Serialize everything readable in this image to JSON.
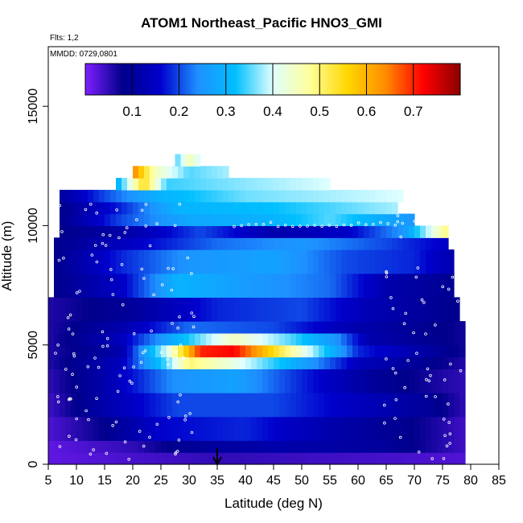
{
  "title": "ATOM1 Northeast_Pacific HNO3_GMI",
  "flights_label": "Flts: 1,2",
  "mmdd_label": "MMDD: 0729,0801",
  "chart_data": {
    "type": "heatmap",
    "title": "ATOM1 Northeast_Pacific HNO3_GMI",
    "xlabel": "Latitude (deg N)",
    "ylabel": "Altitude (m)",
    "xlim": [
      5,
      85
    ],
    "ylim": [
      0,
      17500
    ],
    "xticks": [
      5,
      10,
      15,
      20,
      25,
      30,
      35,
      40,
      45,
      50,
      55,
      60,
      65,
      70,
      75,
      80,
      85
    ],
    "yticks": [
      0,
      5000,
      10000,
      15000
    ],
    "colorbar": {
      "ticks": [
        0.1,
        0.2,
        0.3,
        0.4,
        0.5,
        0.6,
        0.7
      ],
      "range": [
        0.0,
        0.8
      ],
      "stops": [
        "#7f1fff",
        "#00008b",
        "#0000cd",
        "#1e90ff",
        "#00bfff",
        "#e0ffff",
        "#ffff99",
        "#ffd700",
        "#ff8c00",
        "#ff0000",
        "#8b0000"
      ]
    },
    "marker": {
      "x": 35,
      "symbol": "down-arrow"
    },
    "bands": [
      {
        "y0": 0,
        "y1": 500,
        "x0": 5,
        "x1": 79,
        "knots": [
          [
            5,
            0.02
          ],
          [
            35,
            0.05
          ],
          [
            79,
            0.03
          ]
        ]
      },
      {
        "y0": 500,
        "y1": 1000,
        "x0": 5,
        "x1": 79,
        "knots": [
          [
            5,
            0.02
          ],
          [
            20,
            0.05
          ],
          [
            28,
            0.09
          ],
          [
            45,
            0.12
          ],
          [
            65,
            0.1
          ],
          [
            79,
            0.04
          ]
        ]
      },
      {
        "y0": 1000,
        "y1": 2000,
        "x0": 5,
        "x1": 79,
        "knots": [
          [
            5,
            0.03
          ],
          [
            15,
            0.08
          ],
          [
            25,
            0.16
          ],
          [
            40,
            0.18
          ],
          [
            55,
            0.12
          ],
          [
            70,
            0.08
          ],
          [
            79,
            0.04
          ]
        ]
      },
      {
        "y0": 2000,
        "y1": 3000,
        "x0": 5,
        "x1": 79,
        "knots": [
          [
            5,
            0.04
          ],
          [
            15,
            0.12
          ],
          [
            28,
            0.2
          ],
          [
            45,
            0.2
          ],
          [
            60,
            0.14
          ],
          [
            72,
            0.1
          ],
          [
            79,
            0.05
          ]
        ]
      },
      {
        "y0": 3000,
        "y1": 4000,
        "x0": 5,
        "x1": 79,
        "knots": [
          [
            5,
            0.05
          ],
          [
            15,
            0.12
          ],
          [
            27,
            0.24
          ],
          [
            38,
            0.27
          ],
          [
            50,
            0.18
          ],
          [
            62,
            0.1
          ],
          [
            79,
            0.05
          ]
        ]
      },
      {
        "y0": 4000,
        "y1": 4500,
        "x0": 5,
        "x1": 79,
        "knots": [
          [
            5,
            0.06
          ],
          [
            18,
            0.14
          ],
          [
            26,
            0.35
          ],
          [
            30,
            0.5
          ],
          [
            38,
            0.42
          ],
          [
            48,
            0.3
          ],
          [
            60,
            0.14
          ],
          [
            79,
            0.06
          ]
        ]
      },
      {
        "y0": 4500,
        "y1": 5000,
        "x0": 5,
        "x1": 79,
        "knots": [
          [
            5,
            0.06
          ],
          [
            18,
            0.12
          ],
          [
            26,
            0.4
          ],
          [
            32,
            0.7
          ],
          [
            38,
            0.72
          ],
          [
            45,
            0.55
          ],
          [
            52,
            0.38
          ],
          [
            60,
            0.18
          ],
          [
            79,
            0.07
          ]
        ]
      },
      {
        "y0": 5000,
        "y1": 5500,
        "x0": 5,
        "x1": 79,
        "knots": [
          [
            5,
            0.06
          ],
          [
            18,
            0.14
          ],
          [
            28,
            0.3
          ],
          [
            38,
            0.45
          ],
          [
            48,
            0.35
          ],
          [
            56,
            0.25
          ],
          [
            62,
            0.12
          ],
          [
            79,
            0.07
          ]
        ]
      },
      {
        "y0": 5500,
        "y1": 6000,
        "x0": 5,
        "x1": 79,
        "knots": [
          [
            5,
            0.06
          ],
          [
            18,
            0.12
          ],
          [
            30,
            0.22
          ],
          [
            45,
            0.2
          ],
          [
            60,
            0.12
          ],
          [
            79,
            0.07
          ]
        ]
      },
      {
        "y0": 6000,
        "y1": 7000,
        "x0": 5,
        "x1": 78,
        "knots": [
          [
            5,
            0.06
          ],
          [
            20,
            0.1
          ],
          [
            35,
            0.18
          ],
          [
            50,
            0.2
          ],
          [
            62,
            0.13
          ],
          [
            78,
            0.08
          ]
        ]
      },
      {
        "y0": 7000,
        "y1": 8000,
        "x0": 6,
        "x1": 77,
        "knots": [
          [
            6,
            0.08
          ],
          [
            18,
            0.15
          ],
          [
            28,
            0.3
          ],
          [
            40,
            0.26
          ],
          [
            55,
            0.22
          ],
          [
            65,
            0.12
          ],
          [
            77,
            0.09
          ]
        ]
      },
      {
        "y0": 8000,
        "y1": 9000,
        "x0": 6,
        "x1": 77,
        "knots": [
          [
            6,
            0.08
          ],
          [
            18,
            0.18
          ],
          [
            30,
            0.25
          ],
          [
            45,
            0.27
          ],
          [
            58,
            0.2
          ],
          [
            70,
            0.18
          ],
          [
            77,
            0.12
          ]
        ]
      },
      {
        "y0": 9000,
        "y1": 9500,
        "x0": 6,
        "x1": 76,
        "knots": [
          [
            6,
            0.08
          ],
          [
            20,
            0.15
          ],
          [
            35,
            0.22
          ],
          [
            50,
            0.25
          ],
          [
            65,
            0.2
          ],
          [
            76,
            0.15
          ]
        ]
      },
      {
        "y0": 9500,
        "y1": 10000,
        "x0": 7,
        "x1": 76,
        "knots": [
          [
            7,
            0.08
          ],
          [
            20,
            0.12
          ],
          [
            32,
            0.2
          ],
          [
            45,
            0.12
          ],
          [
            58,
            0.15
          ],
          [
            68,
            0.25
          ],
          [
            76,
            0.5
          ]
        ]
      },
      {
        "y0": 10000,
        "y1": 10500,
        "x0": 7,
        "x1": 70,
        "knots": [
          [
            7,
            0.08
          ],
          [
            18,
            0.2
          ],
          [
            30,
            0.28
          ],
          [
            45,
            0.3
          ],
          [
            55,
            0.35
          ],
          [
            65,
            0.28
          ],
          [
            70,
            0.25
          ]
        ]
      },
      {
        "y0": 10500,
        "y1": 11000,
        "x0": 7,
        "x1": 67,
        "knots": [
          [
            7,
            0.08
          ],
          [
            18,
            0.18
          ],
          [
            28,
            0.3
          ],
          [
            45,
            0.32
          ],
          [
            60,
            0.36
          ],
          [
            67,
            0.38
          ]
        ]
      },
      {
        "y0": 11000,
        "y1": 11500,
        "x0": 7,
        "x1": 68,
        "knots": [
          [
            7,
            0.1
          ],
          [
            15,
            0.2
          ],
          [
            25,
            0.3
          ],
          [
            40,
            0.36
          ],
          [
            55,
            0.38
          ],
          [
            68,
            0.4
          ]
        ]
      },
      {
        "y0": 11500,
        "y1": 12000,
        "x0": 17,
        "x1": 55,
        "knots": [
          [
            17,
            0.28
          ],
          [
            22,
            0.55
          ],
          [
            26,
            0.34
          ],
          [
            35,
            0.36
          ],
          [
            45,
            0.38
          ],
          [
            55,
            0.4
          ]
        ]
      },
      {
        "y0": 12000,
        "y1": 12500,
        "x0": 20,
        "x1": 37,
        "knots": [
          [
            20,
            0.65
          ],
          [
            24,
            0.45
          ],
          [
            30,
            0.35
          ],
          [
            37,
            0.38
          ]
        ]
      },
      {
        "y0": 12500,
        "y1": 13000,
        "x0": 27.5,
        "x1": 32,
        "knots": [
          [
            27.5,
            0.34
          ],
          [
            30,
            0.45
          ],
          [
            32,
            0.4
          ]
        ]
      }
    ]
  }
}
